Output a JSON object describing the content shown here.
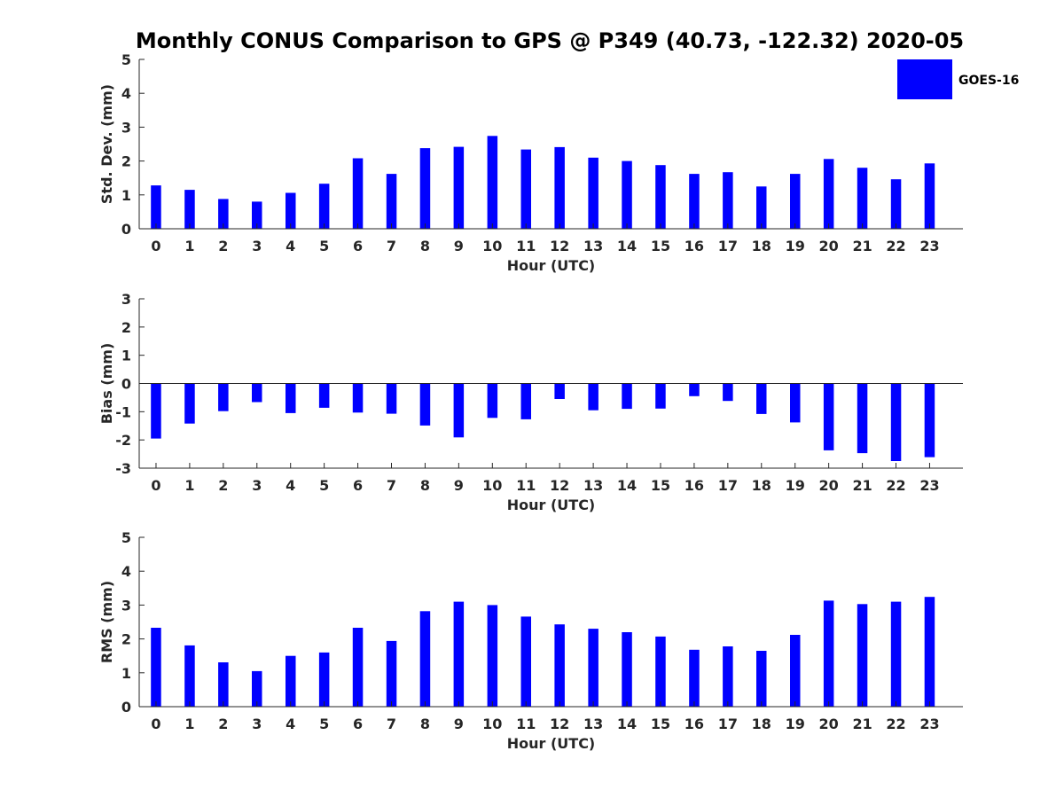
{
  "figure": {
    "title": "Monthly CONUS Comparison to GPS @ P349 (40.73, -122.32) 2020-05",
    "legend": {
      "label": "GOES-16",
      "color": "#0000ff",
      "placement": "top-right"
    }
  },
  "chart_data": [
    {
      "type": "bar",
      "xlabel": "Hour (UTC)",
      "ylabel": "Std. Dev. (mm)",
      "ylim": [
        0,
        5
      ],
      "yticks": [
        0,
        1,
        2,
        3,
        4,
        5
      ],
      "grid": false,
      "categories": [
        "0",
        "1",
        "2",
        "3",
        "4",
        "5",
        "6",
        "7",
        "8",
        "9",
        "10",
        "11",
        "12",
        "13",
        "14",
        "15",
        "16",
        "17",
        "18",
        "19",
        "20",
        "21",
        "22",
        "23"
      ],
      "series": [
        {
          "name": "GOES-16",
          "color": "#0000ff",
          "values": [
            1.28,
            1.15,
            0.88,
            0.8,
            1.06,
            1.33,
            2.08,
            1.62,
            2.38,
            2.42,
            2.74,
            2.34,
            2.41,
            2.1,
            2.0,
            1.88,
            1.62,
            1.67,
            1.25,
            1.62,
            2.06,
            1.8,
            1.46,
            1.93
          ]
        }
      ]
    },
    {
      "type": "bar",
      "xlabel": "Hour (UTC)",
      "ylabel": "Bias (mm)",
      "ylim": [
        -3,
        3
      ],
      "yticks": [
        -3,
        -2,
        -1,
        0,
        1,
        2,
        3
      ],
      "grid": false,
      "categories": [
        "0",
        "1",
        "2",
        "3",
        "4",
        "5",
        "6",
        "7",
        "8",
        "9",
        "10",
        "11",
        "12",
        "13",
        "14",
        "15",
        "16",
        "17",
        "18",
        "19",
        "20",
        "21",
        "22",
        "23"
      ],
      "series": [
        {
          "name": "GOES-16",
          "color": "#0000ff",
          "values": [
            -1.95,
            -1.42,
            -0.98,
            -0.66,
            -1.05,
            -0.86,
            -1.03,
            -1.07,
            -1.49,
            -1.91,
            -1.22,
            -1.27,
            -0.55,
            -0.95,
            -0.9,
            -0.89,
            -0.45,
            -0.62,
            -1.08,
            -1.38,
            -2.37,
            -2.47,
            -2.75,
            -2.61
          ]
        }
      ]
    },
    {
      "type": "bar",
      "xlabel": "Hour (UTC)",
      "ylabel": "RMS (mm)",
      "ylim": [
        0,
        5
      ],
      "yticks": [
        0,
        1,
        2,
        3,
        4,
        5
      ],
      "grid": false,
      "categories": [
        "0",
        "1",
        "2",
        "3",
        "4",
        "5",
        "6",
        "7",
        "8",
        "9",
        "10",
        "11",
        "12",
        "13",
        "14",
        "15",
        "16",
        "17",
        "18",
        "19",
        "20",
        "21",
        "22",
        "23"
      ],
      "series": [
        {
          "name": "GOES-16",
          "color": "#0000ff",
          "values": [
            2.33,
            1.81,
            1.31,
            1.05,
            1.5,
            1.6,
            2.33,
            1.94,
            2.82,
            3.1,
            3.0,
            2.66,
            2.43,
            2.3,
            2.2,
            2.07,
            1.68,
            1.78,
            1.65,
            2.12,
            3.13,
            3.03,
            3.1,
            3.24
          ]
        }
      ]
    }
  ]
}
